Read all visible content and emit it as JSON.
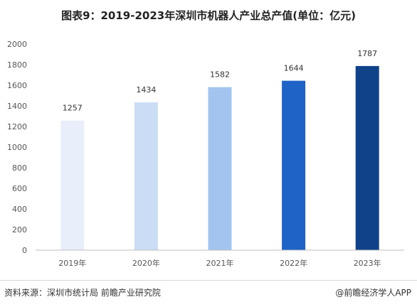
{
  "title": "图表9：2019-2023年深圳市机器人产业总产值(单位：亿元)",
  "source": "资料来源：深圳市统计局 前瞻产业研究院",
  "credit": "@前瞻经济学人APP",
  "chart_data": {
    "type": "bar",
    "title": "图表9：2019-2023年深圳市机器人产业总产值(单位：亿元)",
    "categories": [
      "2019年",
      "2020年",
      "2021年",
      "2022年",
      "2023年"
    ],
    "values": [
      1257,
      1434,
      1582,
      1644,
      1787
    ],
    "data_labels": [
      "1257",
      "1434",
      "1582",
      "1644",
      "1787"
    ],
    "bar_colors": [
      "#e9effa",
      "#cbdcf5",
      "#a3c4ee",
      "#1f63c7",
      "#10428a"
    ],
    "ylim": [
      0,
      2000
    ],
    "y_ticks": [
      0,
      200,
      400,
      600,
      800,
      1000,
      1200,
      1400,
      1600,
      1800,
      2000
    ],
    "xlabel": "",
    "ylabel": "",
    "grid": false,
    "legend": "none"
  }
}
